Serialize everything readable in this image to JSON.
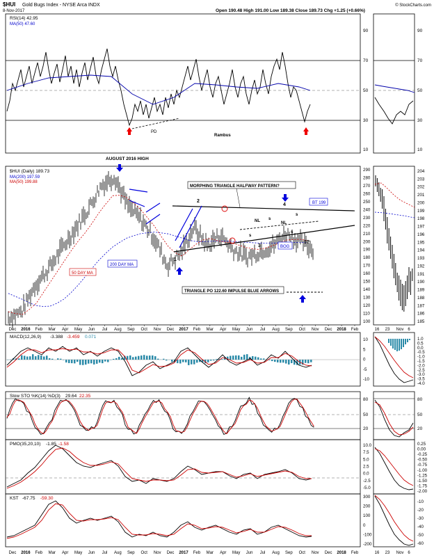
{
  "header": {
    "symbol": "$HUI",
    "name": "Gold Bugs Index - NYSE Arca INDX",
    "date": "8-Nov-2017",
    "quote": "Open 190.48  High 191.00  Low 189.38  Close 189.73  Chg +1.25 (+0.66%)",
    "watermark": "© StockCharts.com"
  },
  "panels": {
    "rsi": {
      "label": "RSI(14) 42.95",
      "ma_label": "MA(50) 47.60",
      "ticks": [
        "90",
        "70",
        "50",
        "30",
        "10"
      ],
      "annotations": [
        "PD",
        "Rambus"
      ]
    },
    "price": {
      "label": "$HUI (Daily) 189.73",
      "ma200_label": "MA(200) 197.59",
      "ma50_label": "MA(50) 199.88",
      "ticks": [
        "290",
        "280",
        "270",
        "260",
        "250",
        "240",
        "230",
        "220",
        "210",
        "200",
        "190",
        "180",
        "170",
        "160",
        "150",
        "140",
        "130",
        "120",
        "110",
        "100"
      ],
      "inset_ticks": [
        "204",
        "203",
        "202",
        "201",
        "200",
        "199",
        "198",
        "197",
        "196",
        "195",
        "194",
        "193",
        "192",
        "191",
        "190",
        "189",
        "188",
        "187",
        "186",
        "185"
      ],
      "annotations": {
        "aug_high": "AUGUST 2016 HIGH",
        "morphing": "MORPHING TRIANGLE HALFWAY PATTERN?",
        "bt": "BT 199",
        "bog": "BOG",
        "ma50": "50 DAY MA",
        "ma200": "200 DAY MA",
        "po": "TRIANGLE PO 122.60 IMPULSE BLUE ARROWS",
        "p1": "1",
        "p2": "2",
        "p3": "3",
        "p4": "4",
        "p5": "5?",
        "nl1": "NL",
        "nl2": "NL",
        "s1": "s",
        "s2": "s",
        "s3": "s",
        "s4": "s"
      }
    },
    "macd": {
      "label": "MACD(12,26,9)",
      "v1": "-3.388",
      "v2": "-3.459",
      "v3": "0.071",
      "ticks": [
        "10",
        "5",
        "0",
        "-5",
        "-10"
      ],
      "inset_ticks": [
        "1.0",
        "0.5",
        "0.0",
        "-0.5",
        "-1.0",
        "-1.5",
        "-2.0",
        "-2.5",
        "-3.0",
        "-3.5",
        "-4.0"
      ]
    },
    "sto": {
      "label": "Slow STO %K(14) %D(3)",
      "v1": "29.64",
      "v2": "22.35",
      "ticks": [
        "80",
        "50",
        "20"
      ],
      "inset_ticks": [
        "80",
        "50",
        "20"
      ]
    },
    "pmo": {
      "label": "PMO(35,20,10)",
      "v1": "-1.85",
      "v2": "-1.58",
      "ticks": [
        "10.0",
        "7.5",
        "5.0",
        "2.5",
        "0.0",
        "-2.5",
        "-5.0"
      ],
      "inset_ticks": [
        "0.25",
        "0.00",
        "-0.25",
        "-0.50",
        "-0.75",
        "-1.00",
        "-1.25",
        "-1.50",
        "-1.75",
        "-2.00"
      ]
    },
    "kst": {
      "label": "KST",
      "v1": "-67.75",
      "v2": "-59.30",
      "ticks": [
        "300",
        "200",
        "100",
        "0",
        "-100",
        "-200"
      ],
      "inset_ticks": [
        "-10",
        "-20",
        "-30",
        "-40",
        "-50",
        "-60"
      ]
    }
  },
  "x_axis": {
    "labels": [
      "Dec",
      "2016",
      "Feb",
      "Mar",
      "Apr",
      "May",
      "Jun",
      "Jul",
      "Aug",
      "Sep",
      "Oct",
      "Nov",
      "Dec",
      "2017",
      "Feb",
      "Mar",
      "Apr",
      "May",
      "Jun",
      "Jul",
      "Aug",
      "Sep",
      "Oct",
      "Nov",
      "Dec",
      "2018",
      "Feb"
    ],
    "inset_labels": [
      "16",
      "23",
      "Nov",
      "6"
    ]
  },
  "colors": {
    "price": "#000000",
    "ma50": "#cc0000",
    "ma200": "#0000cc",
    "macd_hist": "#2a8aa8",
    "annotation_blue": "#0000dd",
    "arrow_red": "#ee0000"
  },
  "chart_data": {
    "type": "line",
    "title": "$HUI Gold Bugs Index - NYSE Arca INDX",
    "x": [
      "Dec 2015",
      "Jan 2016",
      "Feb",
      "Mar",
      "Apr",
      "May",
      "Jun",
      "Jul",
      "Aug",
      "Sep",
      "Oct",
      "Nov",
      "Dec",
      "Jan 2017",
      "Feb",
      "Mar",
      "Apr",
      "May",
      "Jun",
      "Jul",
      "Aug",
      "Sep",
      "Oct",
      "Nov"
    ],
    "series": [
      {
        "name": "$HUI (Daily)",
        "values": [
          105,
          112,
          145,
          165,
          190,
          215,
          240,
          270,
          282,
          245,
          228,
          205,
          170,
          185,
          218,
          195,
          208,
          190,
          180,
          188,
          195,
          210,
          200,
          190
        ]
      },
      {
        "name": "MA(200)",
        "values": [
          135,
          128,
          120,
          118,
          125,
          140,
          160,
          180,
          195,
          205,
          210,
          212,
          210,
          205,
          200,
          200,
          201,
          200,
          199,
          198,
          198,
          199,
          199,
          198
        ]
      },
      {
        "name": "MA(50)",
        "values": [
          112,
          108,
          120,
          145,
          170,
          195,
          215,
          240,
          260,
          255,
          240,
          220,
          195,
          180,
          195,
          205,
          200,
          198,
          192,
          190,
          195,
          202,
          203,
          200
        ]
      }
    ],
    "ylim": [
      100,
      290
    ],
    "grid": false,
    "legend": "top-left"
  }
}
